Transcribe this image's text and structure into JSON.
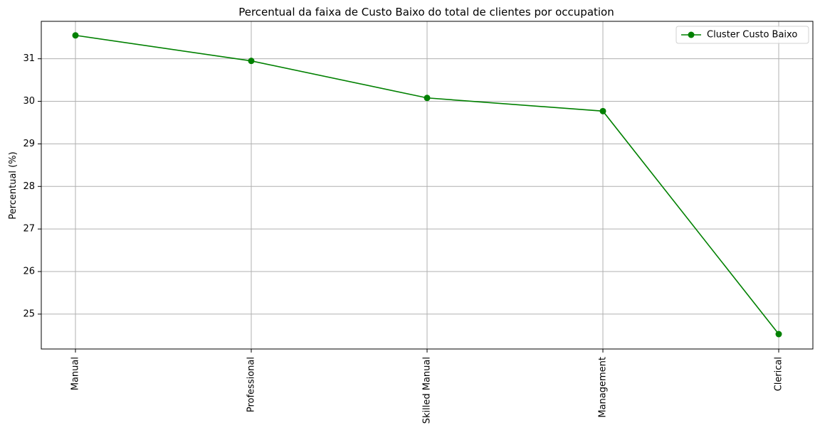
{
  "chart_data": {
    "type": "line",
    "title": "Percentual da faixa de Custo Baixo do total de clientes por occupation",
    "xlabel": "",
    "ylabel": "Percentual (%)",
    "categories": [
      "Manual",
      "Professional",
      "Skilled Manual",
      "Management",
      "Clerical"
    ],
    "series": [
      {
        "name": "Cluster Custo Baixo",
        "values": [
          31.55,
          30.95,
          30.08,
          29.77,
          24.53
        ],
        "color": "#008000",
        "marker": "circle"
      }
    ],
    "ylim": [
      24.18,
      31.88
    ],
    "yticks": [
      25,
      26,
      27,
      28,
      29,
      30,
      31
    ],
    "grid": true,
    "legend_position": "top-right"
  }
}
